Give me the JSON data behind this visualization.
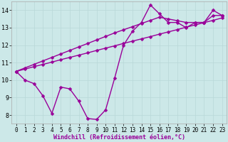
{
  "x": [
    0,
    1,
    2,
    3,
    4,
    5,
    6,
    7,
    8,
    9,
    10,
    11,
    12,
    13,
    14,
    15,
    16,
    17,
    18,
    19,
    20,
    21,
    22,
    23
  ],
  "line1": [
    10.5,
    10.0,
    9.8,
    9.1,
    8.1,
    9.6,
    9.5,
    8.8,
    7.8,
    7.75,
    8.3,
    10.1,
    12.0,
    12.8,
    13.3,
    14.3,
    13.8,
    13.3,
    13.3,
    13.0,
    13.3,
    13.3,
    14.0,
    13.7
  ],
  "line2": [
    10.5,
    10.63,
    10.77,
    10.9,
    11.03,
    11.17,
    11.3,
    11.43,
    11.56,
    11.7,
    11.83,
    11.96,
    12.1,
    12.23,
    12.36,
    12.49,
    12.63,
    12.76,
    12.89,
    13.03,
    13.16,
    13.29,
    13.42,
    13.56
  ],
  "line3": [
    10.5,
    10.7,
    10.9,
    11.1,
    11.3,
    11.5,
    11.7,
    11.9,
    12.1,
    12.3,
    12.5,
    12.7,
    12.88,
    13.06,
    13.24,
    13.42,
    13.6,
    13.5,
    13.4,
    13.3,
    13.3,
    13.3,
    13.7,
    13.7
  ],
  "line_color": "#990099",
  "bg_color": "#cce8e8",
  "xlim": [
    -0.5,
    23.5
  ],
  "ylim": [
    7.5,
    14.5
  ],
  "yticks": [
    8,
    9,
    10,
    11,
    12,
    13,
    14
  ],
  "xticks": [
    0,
    1,
    2,
    3,
    4,
    5,
    6,
    7,
    8,
    9,
    10,
    11,
    12,
    13,
    14,
    15,
    16,
    17,
    18,
    19,
    20,
    21,
    22,
    23
  ],
  "xlabel": "Windchill (Refroidissement éolien,°C)",
  "markersize": 2.5,
  "linewidth": 1.0,
  "figwidth": 3.2,
  "figheight": 2.0,
  "dpi": 100
}
